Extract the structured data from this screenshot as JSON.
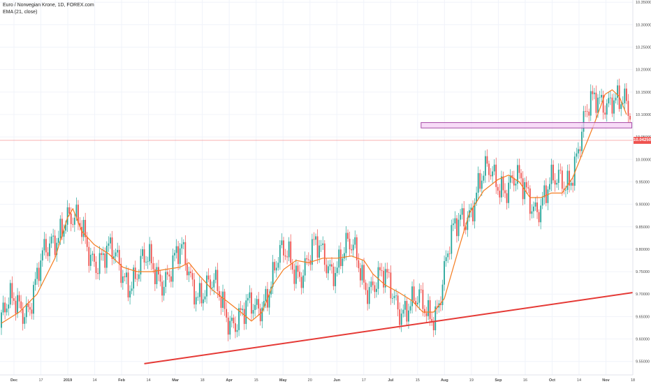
{
  "legend": {
    "symbol": "Euro / Norwegian Krone, 1D, FOREX.com",
    "indicator": "EMA (21, close)"
  },
  "last_price_label": "10.04250",
  "colors": {
    "up": "#26a69a",
    "down": "#ef5350",
    "ema": "#f57c1f",
    "trendline": "#e53935",
    "zone_fill": "#f5d0f5",
    "zone_border": "#a64ca6",
    "grid": "#f0f3fa"
  },
  "chart_data": {
    "type": "candlestick",
    "x_ticks": [
      "Dec",
      "17",
      "2019",
      "14",
      "Feb",
      "14",
      "Mar",
      "18",
      "Apr",
      "15",
      "May",
      "20",
      "Jun",
      "17",
      "Jul",
      "15",
      "Aug",
      "19",
      "Sep",
      "16",
      "Oct",
      "14",
      "Nov",
      "18"
    ],
    "y_ticks": [
      "9.55000",
      "9.60000",
      "9.65000",
      "9.70000",
      "9.75000",
      "9.80000",
      "9.85000",
      "9.90000",
      "9.95000",
      "10.00000",
      "10.05000",
      "10.10000",
      "10.15000",
      "10.20000",
      "10.25000",
      "10.30000",
      "10.35000"
    ],
    "ylim": [
      9.52,
      10.355
    ],
    "last_price": 10.0425,
    "series": [
      {
        "name": "EMA (21, close)",
        "type": "line"
      }
    ],
    "ema_points": [
      [
        0,
        9.635
      ],
      [
        10,
        9.66
      ],
      [
        20,
        9.7
      ],
      [
        30,
        9.78
      ],
      [
        37,
        9.87
      ],
      [
        40,
        9.89
      ],
      [
        45,
        9.84
      ],
      [
        52,
        9.81
      ],
      [
        60,
        9.79
      ],
      [
        68,
        9.76
      ],
      [
        76,
        9.75
      ],
      [
        84,
        9.75
      ],
      [
        92,
        9.755
      ],
      [
        100,
        9.76
      ],
      [
        105,
        9.77
      ],
      [
        110,
        9.745
      ],
      [
        118,
        9.71
      ],
      [
        126,
        9.685
      ],
      [
        134,
        9.66
      ],
      [
        140,
        9.64
      ],
      [
        146,
        9.66
      ],
      [
        152,
        9.72
      ],
      [
        158,
        9.755
      ],
      [
        165,
        9.775
      ],
      [
        172,
        9.77
      ],
      [
        180,
        9.78
      ],
      [
        188,
        9.78
      ],
      [
        196,
        9.785
      ],
      [
        203,
        9.775
      ],
      [
        208,
        9.745
      ],
      [
        215,
        9.72
      ],
      [
        222,
        9.705
      ],
      [
        230,
        9.685
      ],
      [
        236,
        9.66
      ],
      [
        242,
        9.66
      ],
      [
        248,
        9.69
      ],
      [
        256,
        9.8
      ],
      [
        262,
        9.88
      ],
      [
        270,
        9.93
      ],
      [
        278,
        9.955
      ],
      [
        284,
        9.965
      ],
      [
        290,
        9.95
      ],
      [
        296,
        9.915
      ],
      [
        302,
        9.915
      ],
      [
        308,
        9.925
      ],
      [
        314,
        9.925
      ],
      [
        320,
        9.96
      ],
      [
        326,
        10.02
      ],
      [
        332,
        10.08
      ],
      [
        338,
        10.145
      ],
      [
        342,
        10.155
      ],
      [
        346,
        10.14
      ],
      [
        350,
        10.1
      ]
    ],
    "trendline": [
      [
        80,
        9.545
      ],
      [
        365,
        9.71
      ]
    ],
    "resistance_zone": {
      "x": [
        235,
        353
      ],
      "y": [
        10.07,
        10.082
      ]
    }
  }
}
